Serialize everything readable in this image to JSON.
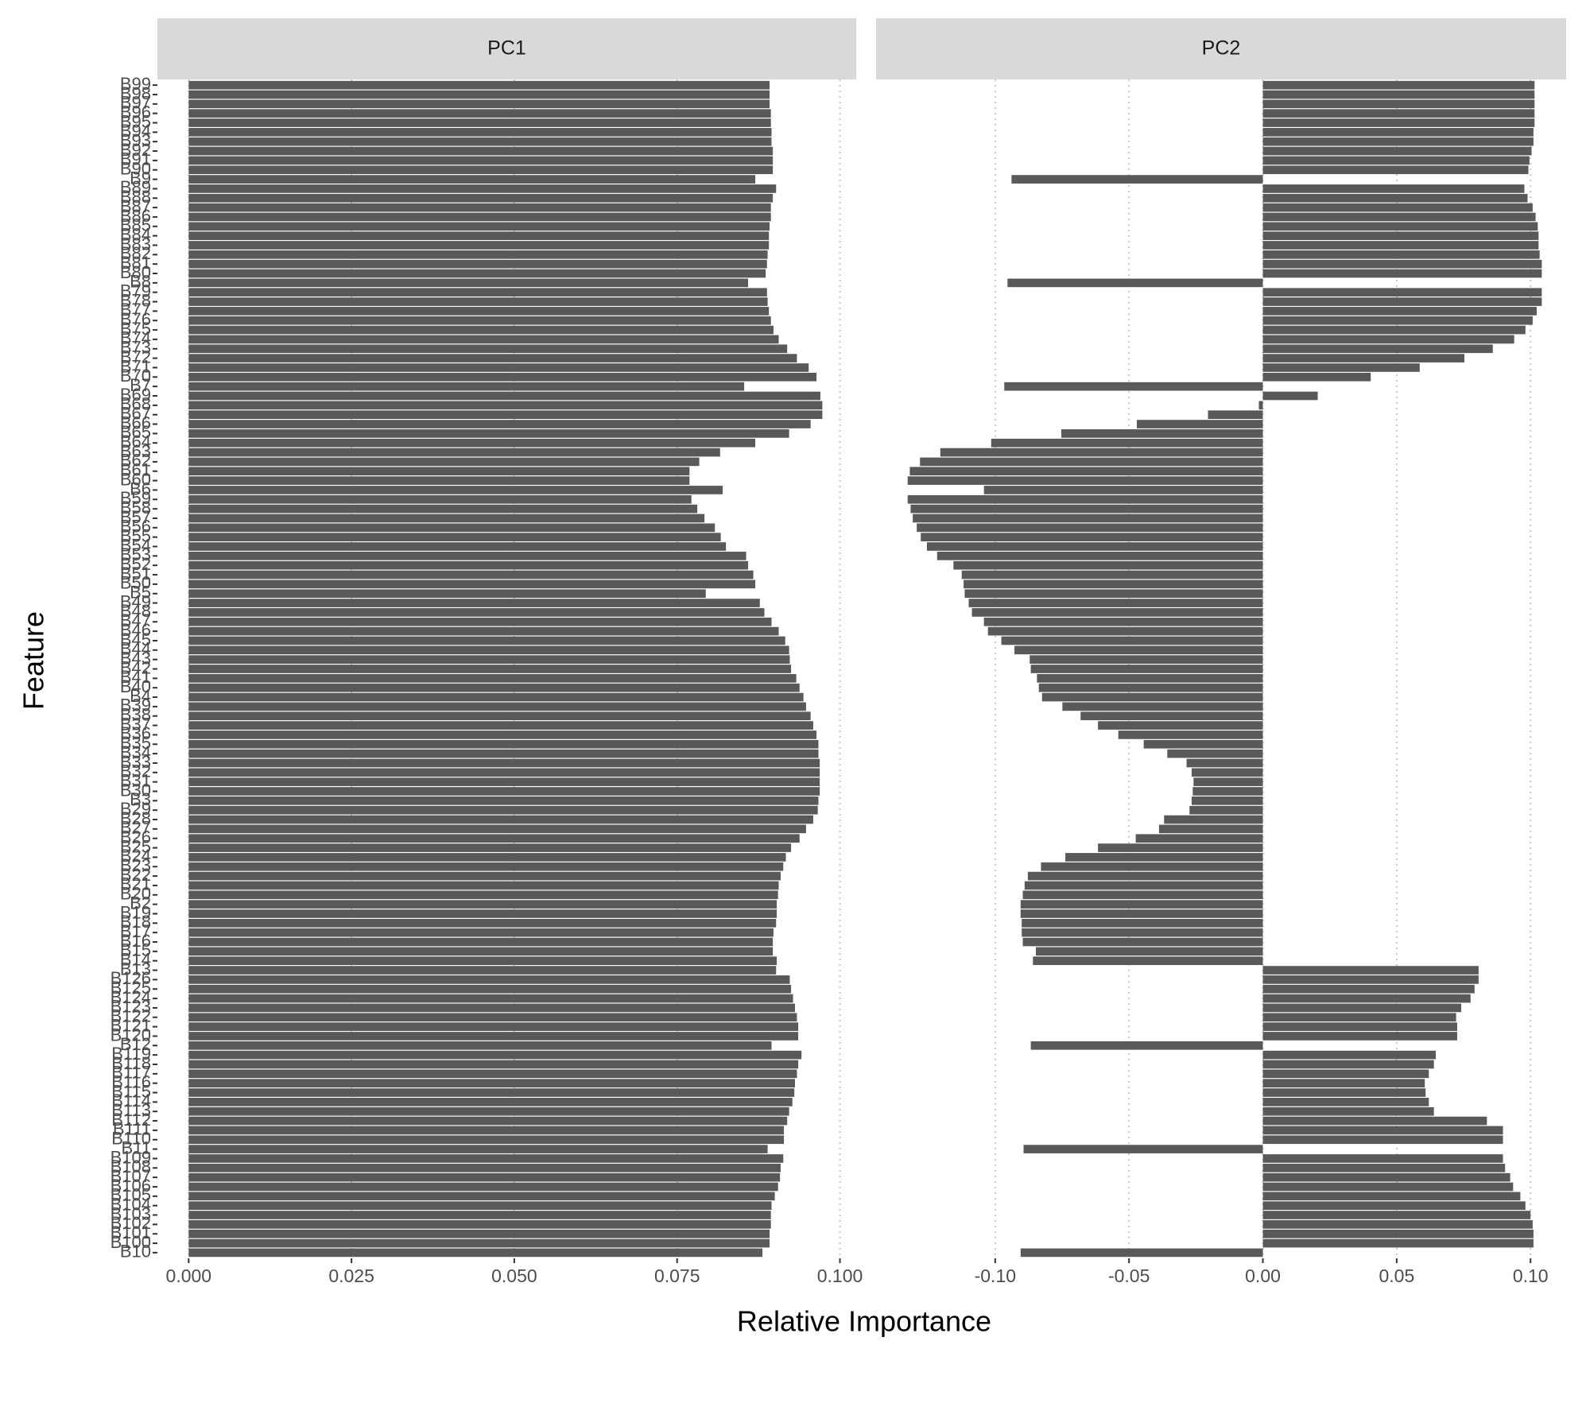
{
  "chart_data": {
    "type": "bar",
    "orientation": "horizontal",
    "x_label": "Relative Importance",
    "y_label": "Feature",
    "color": "#595959",
    "grid": true,
    "categories": [
      "B10",
      "B100",
      "B101",
      "B102",
      "B103",
      "B104",
      "B105",
      "B106",
      "B107",
      "B108",
      "B109",
      "B11",
      "B110",
      "B111",
      "B112",
      "B113",
      "B114",
      "B115",
      "B116",
      "B117",
      "B118",
      "B119",
      "B12",
      "B120",
      "B121",
      "B122",
      "B123",
      "B124",
      "B125",
      "B126",
      "B13",
      "B14",
      "B15",
      "B16",
      "B17",
      "B18",
      "B19",
      "B2",
      "B20",
      "B21",
      "B22",
      "B23",
      "B24",
      "B25",
      "B26",
      "B27",
      "B28",
      "B29",
      "B3",
      "B30",
      "B31",
      "B32",
      "B33",
      "B34",
      "B35",
      "B36",
      "B37",
      "B38",
      "B39",
      "B4",
      "B40",
      "B41",
      "B42",
      "B43",
      "B44",
      "B45",
      "B46",
      "B47",
      "B48",
      "B49",
      "B5",
      "B50",
      "B51",
      "B52",
      "B53",
      "B54",
      "B55",
      "B56",
      "B57",
      "B58",
      "B59",
      "B6",
      "B60",
      "B61",
      "B62",
      "B63",
      "B64",
      "B65",
      "B66",
      "B67",
      "B68",
      "B69",
      "B7",
      "B70",
      "B71",
      "B72",
      "B73",
      "B74",
      "B75",
      "B76",
      "B77",
      "B78",
      "B79",
      "B8",
      "B80",
      "B81",
      "B82",
      "B83",
      "B84",
      "B85",
      "B86",
      "B87",
      "B88",
      "B89",
      "B9",
      "B90",
      "B91",
      "B92",
      "B93",
      "B94",
      "B95",
      "B96",
      "B97",
      "B98",
      "B99"
    ],
    "facets": [
      {
        "name": "PC1",
        "xlim": [
          -0.0048,
          0.1025
        ],
        "xticks": [
          {
            "value": 0,
            "label": "0.000"
          },
          {
            "value": 0.025,
            "label": "0.025"
          },
          {
            "value": 0.05,
            "label": "0.050"
          },
          {
            "value": 0.075,
            "label": "0.075"
          },
          {
            "value": 0.1,
            "label": "0.100"
          }
        ],
        "values": [
          0.0881,
          0.0892,
          0.0892,
          0.0894,
          0.0894,
          0.0895,
          0.09,
          0.0905,
          0.0908,
          0.0909,
          0.0913,
          0.0889,
          0.0914,
          0.0914,
          0.0919,
          0.0922,
          0.0927,
          0.093,
          0.0931,
          0.0934,
          0.0936,
          0.0941,
          0.0895,
          0.0936,
          0.0936,
          0.0934,
          0.0931,
          0.0928,
          0.0925,
          0.0923,
          0.0902,
          0.0903,
          0.0897,
          0.0897,
          0.0898,
          0.0902,
          0.0903,
          0.0903,
          0.0905,
          0.0906,
          0.0909,
          0.0913,
          0.0917,
          0.0925,
          0.0938,
          0.0948,
          0.0959,
          0.0966,
          0.0967,
          0.0969,
          0.0969,
          0.0969,
          0.0969,
          0.0967,
          0.0967,
          0.0964,
          0.0959,
          0.0955,
          0.0948,
          0.0944,
          0.0938,
          0.0933,
          0.0925,
          0.0923,
          0.0922,
          0.0916,
          0.0906,
          0.0895,
          0.0884,
          0.0877,
          0.0794,
          0.087,
          0.0867,
          0.0859,
          0.0856,
          0.0825,
          0.0817,
          0.0808,
          0.0792,
          0.0781,
          0.0772,
          0.082,
          0.0769,
          0.0769,
          0.0784,
          0.0816,
          0.087,
          0.0922,
          0.0955,
          0.0973,
          0.0973,
          0.097,
          0.0853,
          0.0964,
          0.0952,
          0.0934,
          0.0919,
          0.0906,
          0.0898,
          0.0894,
          0.0891,
          0.0889,
          0.0888,
          0.0859,
          0.0886,
          0.0888,
          0.0889,
          0.0891,
          0.0891,
          0.0892,
          0.0894,
          0.0894,
          0.0897,
          0.0902,
          0.087,
          0.0897,
          0.0897,
          0.0897,
          0.0895,
          0.0895,
          0.0894,
          0.0894,
          0.0892,
          0.0892,
          0.0892
        ]
      },
      {
        "name": "PC2",
        "xlim": [
          -0.1445,
          0.1133
        ],
        "xticks": [
          {
            "value": -0.1,
            "label": "-0.10"
          },
          {
            "value": -0.05,
            "label": "-0.05"
          },
          {
            "value": 0,
            "label": "0.00"
          },
          {
            "value": 0.05,
            "label": "0.05"
          },
          {
            "value": 0.1,
            "label": "0.10"
          }
        ],
        "values": [
          -0.0905,
          0.1011,
          0.1011,
          0.1008,
          0.1,
          0.0981,
          0.0962,
          0.0935,
          0.0924,
          0.0905,
          0.0897,
          -0.0894,
          0.0897,
          0.0897,
          0.0837,
          0.0639,
          0.062,
          0.0608,
          0.0605,
          0.062,
          0.0639,
          0.0646,
          -0.0867,
          0.0726,
          0.0726,
          0.0722,
          0.0741,
          0.0776,
          0.0791,
          0.0806,
          0.0806,
          -0.0859,
          -0.0848,
          -0.0897,
          -0.0901,
          -0.0901,
          -0.0905,
          -0.0905,
          -0.0897,
          -0.089,
          -0.0878,
          -0.0829,
          -0.0738,
          -0.0616,
          -0.0475,
          -0.0388,
          -0.0369,
          -0.0274,
          -0.0266,
          -0.0262,
          -0.0259,
          -0.0266,
          -0.0285,
          -0.0357,
          -0.0445,
          -0.054,
          -0.0616,
          -0.0681,
          -0.0749,
          -0.0825,
          -0.0837,
          -0.0844,
          -0.0867,
          -0.0871,
          -0.0928,
          -0.0977,
          -0.1027,
          -0.1042,
          -0.1087,
          -0.1099,
          -0.1114,
          -0.1118,
          -0.1125,
          -0.1156,
          -0.1217,
          -0.1255,
          -0.1278,
          -0.1293,
          -0.1308,
          -0.1316,
          -0.1327,
          -0.1042,
          -0.1327,
          -0.1319,
          -0.1281,
          -0.1205,
          -0.1015,
          -0.0753,
          -0.0471,
          -0.0205,
          -0.0015,
          0.0205,
          -0.0966,
          0.0403,
          0.0586,
          0.0753,
          0.0859,
          0.0939,
          0.0981,
          0.1008,
          0.1023,
          0.1042,
          0.1042,
          -0.0954,
          0.1042,
          0.1042,
          0.1034,
          0.103,
          0.103,
          0.1027,
          0.1019,
          0.1008,
          0.0989,
          0.0977,
          -0.0939,
          0.0992,
          0.0996,
          0.1004,
          0.1011,
          0.1011,
          0.1015,
          0.1015,
          0.1015,
          0.1015,
          0.1015
        ]
      }
    ]
  }
}
